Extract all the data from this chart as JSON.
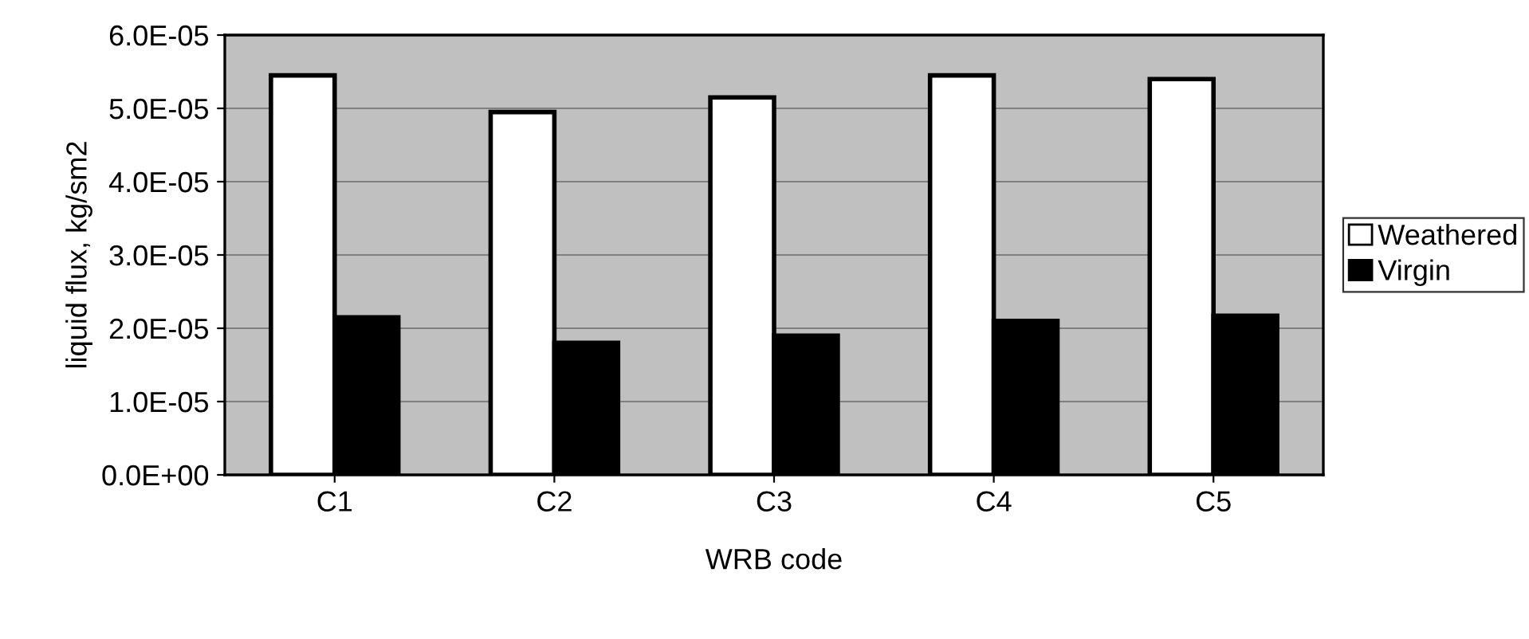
{
  "chart_data": {
    "type": "bar",
    "xlabel": "WRB code",
    "ylabel": "liquid flux, kg/sm2",
    "categories": [
      "C1",
      "C2",
      "C3",
      "C4",
      "C5"
    ],
    "series": [
      {
        "name": "Weathered",
        "color": "#ffffff",
        "values": [
          5.45e-05,
          4.95e-05,
          5.15e-05,
          5.45e-05,
          5.4e-05
        ]
      },
      {
        "name": "Virgin",
        "color": "#000000",
        "values": [
          2.15e-05,
          1.8e-05,
          1.9e-05,
          2.1e-05,
          2.17e-05
        ]
      }
    ],
    "ylim": [
      0,
      6e-05
    ],
    "yticks": [
      {
        "value": 0,
        "label": "0.0E+00"
      },
      {
        "value": 1e-05,
        "label": "1.0E-05"
      },
      {
        "value": 2e-05,
        "label": "2.0E-05"
      },
      {
        "value": 3e-05,
        "label": "3.0E-05"
      },
      {
        "value": 4e-05,
        "label": "4.0E-05"
      },
      {
        "value": 5e-05,
        "label": "5.0E-05"
      },
      {
        "value": 6e-05,
        "label": "6.0E-05"
      }
    ],
    "grid": "y",
    "legend": "right"
  }
}
